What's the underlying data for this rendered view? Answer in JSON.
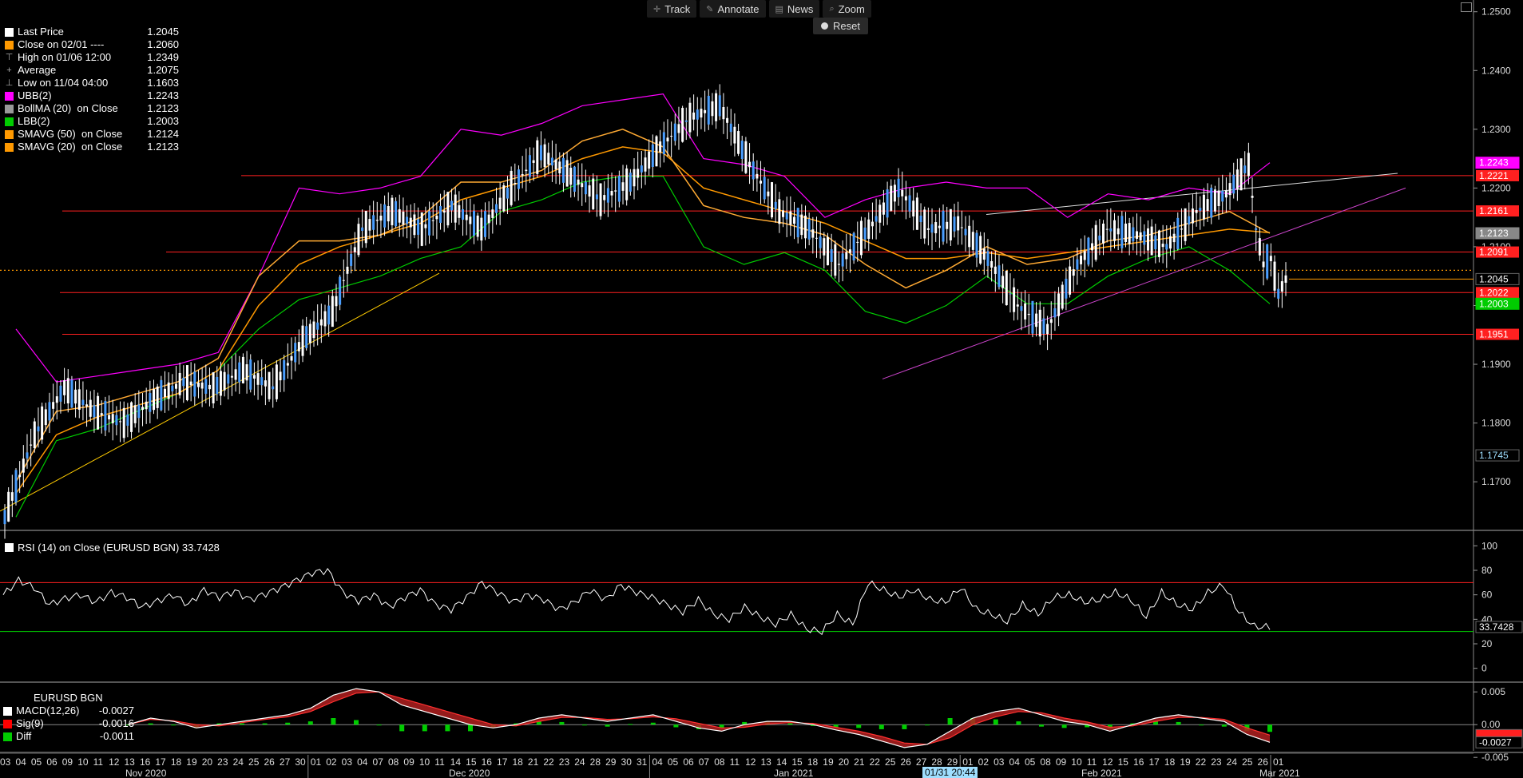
{
  "toolbar": {
    "track": "Track",
    "annotate": "Annotate",
    "news": "News",
    "zoom": "Zoom",
    "reset": "Reset"
  },
  "legend": [
    {
      "label": "Last Price",
      "value": "1.2045",
      "color": "#ffffff",
      "kind": "swatch"
    },
    {
      "label": "Close on 02/01 ----",
      "value": "1.2060",
      "color": "#ff9900",
      "kind": "swatch"
    },
    {
      "label": "High on 01/06 12:00",
      "value": "1.2349",
      "color": "#aaaaaa",
      "kind": "high-icon"
    },
    {
      "label": "Average",
      "value": "1.2075",
      "color": "#aaaaaa",
      "kind": "average-icon"
    },
    {
      "label": "Low on 11/04 04:00",
      "value": "1.1603",
      "color": "#aaaaaa",
      "kind": "low-icon"
    },
    {
      "label": "UBB(2)",
      "value": "1.2243",
      "color": "#ff00ff",
      "kind": "swatch"
    },
    {
      "label": "BollMA (20)  on Close",
      "value": "1.2123",
      "color": "#999999",
      "kind": "swatch"
    },
    {
      "label": "LBB(2)",
      "value": "1.2003",
      "color": "#00cc00",
      "kind": "swatch"
    },
    {
      "label": "SMAVG (50)  on Close",
      "value": "1.2124",
      "color": "#ff9900",
      "kind": "swatch"
    },
    {
      "label": "SMAVG (20)  on Close",
      "value": "1.2123",
      "color": "#ff9900",
      "kind": "swatch"
    }
  ],
  "rsi_legend": {
    "label": "RSI (14)  on Close (EURUSD BGN)",
    "value": "33.7428"
  },
  "macd_legend": {
    "title": "EURUSD BGN",
    "rows": [
      {
        "label": "MACD(12,26)",
        "value": "-0.0027",
        "color": "#ffffff"
      },
      {
        "label": "Sig(9)",
        "value": "-0.0016",
        "color": "#ff0000"
      },
      {
        "label": "Diff",
        "value": "-0.0011",
        "color": "#00cc00"
      }
    ]
  },
  "cursor_time": "01/31 20:44",
  "chart_data": [
    {
      "type": "line",
      "name": "price",
      "ylim": [
        1.162,
        1.252
      ],
      "yticks": [
        1.17,
        1.18,
        1.19,
        1.2,
        1.21,
        1.22,
        1.23,
        1.24,
        1.25
      ],
      "ytick_labels": [
        "1.1700",
        "1.1800",
        "1.1900",
        "1.2000",
        "1.2100",
        "1.2200",
        "1.2300",
        "1.2400",
        "1.2500"
      ],
      "x_month_labels": [
        "Nov 2020",
        "Dec 2020",
        "Jan 2021",
        "Feb 2021",
        "Mar 2021"
      ],
      "x_day_labels": [
        "03",
        "04",
        "05",
        "06",
        "09",
        "10",
        "11",
        "12",
        "13",
        "16",
        "17",
        "18",
        "19",
        "20",
        "23",
        "24",
        "25",
        "26",
        "27",
        "30",
        "01",
        "02",
        "03",
        "04",
        "07",
        "08",
        "09",
        "10",
        "11",
        "14",
        "15",
        "16",
        "17",
        "18",
        "21",
        "22",
        "23",
        "24",
        "28",
        "29",
        "30",
        "31",
        "04",
        "05",
        "06",
        "07",
        "08",
        "11",
        "12",
        "13",
        "14",
        "15",
        "18",
        "19",
        "20",
        "21",
        "22",
        "25",
        "26",
        "27",
        "28",
        "29",
        "01",
        "02",
        "03",
        "04",
        "05",
        "08",
        "09",
        "10",
        "11",
        "12",
        "15",
        "16",
        "17",
        "18",
        "19",
        "22",
        "23",
        "24",
        "25",
        "26",
        "01"
      ],
      "series": {
        "last_price_x": [
          0,
          2,
          4,
          6,
          8,
          10,
          12,
          14,
          16,
          18,
          20,
          22,
          24,
          26,
          28,
          30,
          32,
          34,
          36,
          38,
          40,
          42,
          44,
          46,
          48,
          50,
          52,
          54,
          56,
          58,
          60,
          62,
          64,
          66,
          68,
          70,
          72,
          74,
          76,
          78,
          80,
          82
        ],
        "last_price": [
          1.164,
          1.178,
          1.186,
          1.182,
          1.18,
          1.184,
          1.187,
          1.186,
          1.189,
          1.186,
          1.194,
          1.199,
          1.213,
          1.216,
          1.213,
          1.217,
          1.213,
          1.22,
          1.226,
          1.222,
          1.218,
          1.221,
          1.227,
          1.232,
          1.234,
          1.224,
          1.216,
          1.213,
          1.207,
          1.213,
          1.22,
          1.213,
          1.214,
          1.208,
          1.2,
          1.196,
          1.207,
          1.213,
          1.212,
          1.21,
          1.216,
          1.219
        ],
        "last_price_tail_x": [
          82,
          83.5,
          84,
          84.5,
          85,
          85.5,
          86
        ],
        "last_price_tail": [
          1.219,
          1.224,
          1.213,
          1.207,
          1.208,
          1.202,
          1.2045
        ],
        "ubb": [
          1.196,
          1.187,
          1.188,
          1.189,
          1.19,
          1.192,
          1.205,
          1.22,
          1.219,
          1.22,
          1.222,
          1.23,
          1.229,
          1.231,
          1.234,
          1.235,
          1.236,
          1.225,
          1.224,
          1.222,
          1.215,
          1.218,
          1.22,
          1.221,
          1.22,
          1.22,
          1.215,
          1.219,
          1.218,
          1.22,
          1.219,
          1.2243
        ],
        "lbb": [
          1.164,
          1.177,
          1.179,
          1.182,
          1.185,
          1.189,
          1.196,
          1.201,
          1.203,
          1.205,
          1.208,
          1.21,
          1.216,
          1.218,
          1.221,
          1.222,
          1.222,
          1.21,
          1.207,
          1.209,
          1.206,
          1.199,
          1.197,
          1.2,
          1.205,
          1.2003,
          1.2003,
          1.205,
          1.208,
          1.21,
          1.206,
          1.2003
        ],
        "smavg20": [
          1.17,
          1.182,
          1.183,
          1.185,
          1.187,
          1.191,
          1.205,
          1.211,
          1.211,
          1.212,
          1.215,
          1.221,
          1.221,
          1.223,
          1.228,
          1.23,
          1.227,
          1.217,
          1.215,
          1.214,
          1.212,
          1.207,
          1.203,
          1.206,
          1.21,
          1.207,
          1.208,
          1.211,
          1.212,
          1.214,
          1.216,
          1.2123
        ],
        "smavg50": [
          1.168,
          1.178,
          1.181,
          1.183,
          1.185,
          1.189,
          1.2,
          1.207,
          1.21,
          1.212,
          1.214,
          1.218,
          1.22,
          1.222,
          1.225,
          1.227,
          1.226,
          1.22,
          1.218,
          1.216,
          1.214,
          1.211,
          1.208,
          1.208,
          1.209,
          1.208,
          1.209,
          1.21,
          1.211,
          1.212,
          1.213,
          1.2124
        ]
      },
      "horizontal_levels": [
        {
          "value": 1.2221,
          "label": "1.2221",
          "color": "#ff2020"
        },
        {
          "value": 1.2161,
          "label": "1.2161",
          "color": "#ff2020"
        },
        {
          "value": 1.2091,
          "label": "1.2091",
          "color": "#ff2020"
        },
        {
          "value": 1.2022,
          "label": "1.2022",
          "color": "#ff2020"
        },
        {
          "value": 1.1951,
          "label": "1.1951",
          "color": "#ff2020"
        }
      ],
      "price_tags": [
        {
          "value": 1.2243,
          "label": "1.2243",
          "color": "#ff00ff",
          "text": "#ffffff"
        },
        {
          "value": 1.2123,
          "label": "1.2123",
          "color": "#888888",
          "text": "#ffffff"
        },
        {
          "value": 1.2045,
          "label": "1.2045",
          "color": "#000000",
          "text": "#ffffff"
        },
        {
          "value": 1.2003,
          "label": "1.2003",
          "color": "#00cc00",
          "text": "#ffffff"
        },
        {
          "value": 1.1745,
          "label": "1.1745",
          "color": "#000000",
          "text": "#9fdfff"
        }
      ],
      "close_ref": {
        "value": 1.206,
        "color": "#ff9900"
      }
    },
    {
      "type": "line",
      "name": "RSI (14)",
      "ylim": [
        -10,
        110
      ],
      "yticks": [
        0,
        20,
        40,
        60,
        80,
        100
      ],
      "ytick_labels": [
        "0",
        "20",
        "40",
        "60",
        "80",
        "100"
      ],
      "levels": [
        70,
        30
      ],
      "values": [
        60,
        72,
        66,
        52,
        57,
        60,
        54,
        62,
        58,
        50,
        55,
        60,
        52,
        64,
        58,
        63,
        56,
        61,
        66,
        72,
        78,
        80,
        62,
        55,
        60,
        50,
        58,
        64,
        52,
        48,
        58,
        70,
        62,
        54,
        60,
        56,
        48,
        54,
        64,
        56,
        68,
        62,
        58,
        52,
        46,
        56,
        44,
        40,
        50,
        42,
        36,
        44,
        32,
        30,
        44,
        36,
        70,
        64,
        58,
        64,
        56,
        54,
        66,
        48,
        44,
        38,
        52,
        44,
        58,
        60,
        54,
        56,
        62,
        56,
        42,
        62,
        52,
        48,
        62,
        68,
        46,
        34,
        33.7428
      ],
      "last_label": "33.7428"
    },
    {
      "type": "area",
      "name": "MACD",
      "ylim": [
        -0.004,
        0.006
      ],
      "yticks": [
        0.005,
        0.0,
        -0.005
      ],
      "ytick_labels": [
        "0.005",
        "0.00",
        "-0.005"
      ],
      "macd": [
        0.0,
        0.001,
        0.0005,
        -0.0005,
        0.0,
        0.0005,
        0.001,
        0.0015,
        0.0025,
        0.0045,
        0.0055,
        0.005,
        0.003,
        0.002,
        0.001,
        0.0,
        -0.0005,
        0.0,
        0.001,
        0.0015,
        0.001,
        0.0005,
        0.001,
        0.0015,
        0.0005,
        -0.0005,
        -0.001,
        0.0,
        0.0005,
        0.0005,
        0.0,
        -0.0008,
        -0.0015,
        -0.0025,
        -0.0035,
        -0.003,
        -0.001,
        0.001,
        0.002,
        0.0025,
        0.0015,
        0.0005,
        0.0,
        -0.001,
        0.0,
        0.001,
        0.0015,
        0.001,
        0.0005,
        -0.0015,
        -0.0027
      ],
      "signal": [
        0.0,
        0.0008,
        0.0006,
        0.0,
        -0.0002,
        0.0003,
        0.0008,
        0.0012,
        0.002,
        0.0035,
        0.0048,
        0.005,
        0.004,
        0.003,
        0.002,
        0.001,
        0.0,
        -0.0002,
        0.0005,
        0.0011,
        0.0011,
        0.0008,
        0.0009,
        0.0012,
        0.0009,
        0.0002,
        -0.0005,
        -0.0004,
        0.0001,
        0.0003,
        0.0002,
        -0.0004,
        -0.001,
        -0.0018,
        -0.0028,
        -0.003,
        -0.002,
        0.0,
        0.0012,
        0.002,
        0.0018,
        0.001,
        0.0004,
        -0.0004,
        -0.0002,
        0.0005,
        0.0011,
        0.0011,
        0.0008,
        -0.0005,
        -0.0016
      ],
      "last_labels": [
        {
          "label": "-0.0016",
          "color": "#ff2020"
        },
        {
          "label": "-0.0027",
          "color": "#ffffff"
        }
      ]
    }
  ]
}
